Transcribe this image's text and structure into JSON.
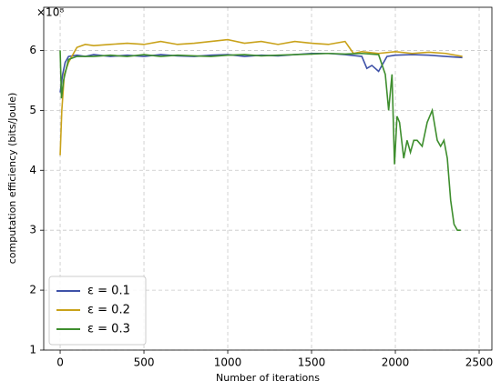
{
  "chart_data": {
    "type": "line",
    "x_label": "Number of iterations",
    "y_label": "computation efficiency (bits/Joule)",
    "offset_label": "×10⁸",
    "xlim": [
      -98,
      2576
    ],
    "ylim": [
      1,
      6.72
    ],
    "xticks": [
      0,
      500,
      1000,
      1500,
      2000,
      2500
    ],
    "yticks": [
      1,
      2,
      3,
      4,
      5,
      6
    ],
    "grid": true,
    "legend": "lower left",
    "series": [
      {
        "name": "ε = 0.1",
        "color": "#3f52a8",
        "x": [
          0,
          15,
          30,
          50,
          100,
          150,
          200,
          300,
          400,
          500,
          600,
          700,
          800,
          900,
          1000,
          1100,
          1200,
          1300,
          1400,
          1500,
          1600,
          1700,
          1800,
          1830,
          1860,
          1900,
          1950,
          2000,
          2100,
          2200,
          2300,
          2400
        ],
        "values": [
          5.3,
          5.6,
          5.8,
          5.9,
          5.92,
          5.9,
          5.93,
          5.9,
          5.92,
          5.9,
          5.93,
          5.91,
          5.9,
          5.92,
          5.93,
          5.9,
          5.92,
          5.91,
          5.93,
          5.95,
          5.95,
          5.93,
          5.9,
          5.7,
          5.75,
          5.65,
          5.9,
          5.92,
          5.93,
          5.92,
          5.9,
          5.88
        ]
      },
      {
        "name": "ε = 0.2",
        "color": "#c9a21a",
        "x": [
          0,
          10,
          25,
          50,
          100,
          150,
          200,
          300,
          400,
          500,
          600,
          700,
          800,
          900,
          1000,
          1100,
          1200,
          1300,
          1400,
          1500,
          1600,
          1700,
          1750,
          1800,
          1900,
          2000,
          2100,
          2200,
          2300,
          2400
        ],
        "values": [
          4.25,
          5.0,
          5.6,
          5.8,
          6.05,
          6.1,
          6.08,
          6.1,
          6.12,
          6.1,
          6.15,
          6.1,
          6.12,
          6.15,
          6.18,
          6.12,
          6.15,
          6.1,
          6.15,
          6.12,
          6.1,
          6.15,
          5.95,
          5.98,
          5.95,
          5.98,
          5.95,
          5.97,
          5.95,
          5.9
        ]
      },
      {
        "name": "ε = 0.3",
        "color": "#3e8e2e",
        "x": [
          0,
          8,
          20,
          50,
          100,
          200,
          300,
          400,
          500,
          600,
          700,
          800,
          900,
          1000,
          1100,
          1200,
          1300,
          1400,
          1500,
          1600,
          1700,
          1800,
          1900,
          1940,
          1960,
          1980,
          1995,
          2010,
          2025,
          2050,
          2070,
          2090,
          2110,
          2130,
          2160,
          2190,
          2220,
          2250,
          2270,
          2290,
          2310,
          2330,
          2350,
          2370,
          2390
        ],
        "values": [
          6.0,
          5.2,
          5.5,
          5.85,
          5.9,
          5.9,
          5.92,
          5.9,
          5.93,
          5.9,
          5.92,
          5.91,
          5.9,
          5.92,
          5.93,
          5.91,
          5.92,
          5.93,
          5.94,
          5.95,
          5.94,
          5.95,
          5.93,
          5.6,
          5.0,
          5.6,
          4.1,
          4.9,
          4.8,
          4.2,
          4.5,
          4.3,
          4.5,
          4.5,
          4.4,
          4.8,
          5.0,
          4.5,
          4.4,
          4.5,
          4.2,
          3.5,
          3.1,
          3.0,
          3.0
        ]
      }
    ]
  }
}
